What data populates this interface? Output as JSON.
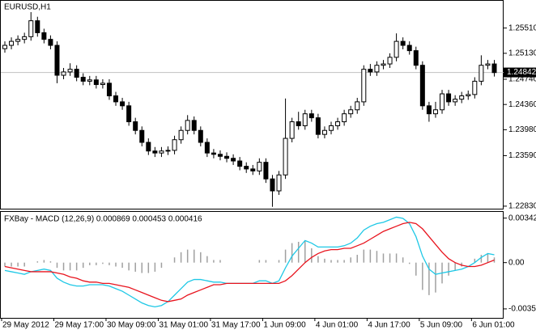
{
  "chart_data": [
    {
      "type": "candlestick",
      "title": "EURUSD,H1",
      "categories": [
        "29 May 2012",
        null,
        null,
        null,
        null,
        null,
        null,
        null,
        "29 May 17:00",
        null,
        null,
        null,
        null,
        null,
        null,
        null,
        "30 May 09:00",
        null,
        null,
        null,
        null,
        null,
        null,
        null,
        "31 May 01:00",
        null,
        null,
        null,
        null,
        null,
        null,
        null,
        "31 May 17:00",
        null,
        null,
        null,
        null,
        null,
        null,
        null,
        "1 Jun 09:00",
        null,
        null,
        null,
        null,
        null,
        null,
        null,
        "4 Jun 01:00",
        null,
        null,
        null,
        null,
        null,
        null,
        null,
        "4 Jun 17:00",
        null,
        null,
        null,
        null,
        null,
        null,
        null,
        "5 Jun 09:00",
        null,
        null,
        null,
        null,
        null,
        null,
        null,
        "6 Jun 01:00",
        null,
        null,
        null
      ],
      "open": [
        1.252,
        1.2525,
        1.2531,
        1.2534,
        1.2538,
        1.2562,
        1.2544,
        1.2534,
        1.2525,
        1.248,
        1.2485,
        1.2489,
        1.2477,
        1.2471,
        1.2473,
        1.2466,
        1.2468,
        1.2449,
        1.244,
        1.2434,
        1.241,
        1.2397,
        1.2379,
        1.2366,
        1.2363,
        1.2366,
        1.2367,
        1.2383,
        1.2397,
        1.2412,
        1.2397,
        1.2379,
        1.2363,
        1.2361,
        1.2358,
        1.2355,
        1.2351,
        1.2343,
        1.2339,
        1.2336,
        1.2349,
        1.2324,
        1.2306,
        1.233,
        1.2385,
        1.241,
        1.2404,
        1.2422,
        1.2416,
        1.2391,
        1.2397,
        1.2404,
        1.241,
        1.2422,
        1.2428,
        1.244,
        1.2489,
        1.2485,
        1.2495,
        1.2497,
        1.2507,
        1.2531,
        1.2525,
        1.2517,
        1.2495,
        1.2434,
        1.2422,
        1.2428,
        1.2452,
        1.244,
        1.2444,
        1.2449,
        1.2451,
        1.2471,
        1.2495,
        1.2497
      ],
      "high": [
        1.2531,
        1.2537,
        1.254,
        1.2544,
        1.2575,
        1.2568,
        1.255,
        1.254,
        1.2531,
        1.2491,
        1.2498,
        1.2495,
        1.2483,
        1.2479,
        1.2479,
        1.2474,
        1.2474,
        1.2455,
        1.2446,
        1.244,
        1.2416,
        1.2403,
        1.2385,
        1.2372,
        1.2372,
        1.2373,
        1.2389,
        1.2403,
        1.242,
        1.2418,
        1.2403,
        1.2385,
        1.2369,
        1.2367,
        1.2364,
        1.2361,
        1.2357,
        1.2349,
        1.2345,
        1.2355,
        1.2355,
        1.233,
        1.2336,
        1.2445,
        1.2416,
        1.2425,
        1.2428,
        1.2428,
        1.2422,
        1.2403,
        1.241,
        1.2416,
        1.2428,
        1.2434,
        1.2446,
        1.2495,
        1.2497,
        1.2501,
        1.2503,
        1.2513,
        1.2543,
        1.2537,
        1.2531,
        1.2523,
        1.2501,
        1.244,
        1.244,
        1.2458,
        1.2458,
        1.245,
        1.2455,
        1.2457,
        1.2477,
        1.251,
        1.2503,
        1.2503
      ],
      "low": [
        1.2514,
        1.2519,
        1.2525,
        1.2528,
        1.2532,
        1.2538,
        1.2528,
        1.2519,
        1.2468,
        1.2474,
        1.2479,
        1.2471,
        1.2465,
        1.2465,
        1.246,
        1.246,
        1.2443,
        1.2434,
        1.2428,
        1.2404,
        1.2391,
        1.2373,
        1.236,
        1.2357,
        1.2357,
        1.236,
        1.2361,
        1.2377,
        1.2391,
        1.2391,
        1.2373,
        1.2357,
        1.2355,
        1.2352,
        1.2349,
        1.2345,
        1.2337,
        1.2333,
        1.233,
        1.233,
        1.2318,
        1.2282,
        1.23,
        1.2324,
        1.2379,
        1.2398,
        1.2398,
        1.241,
        1.2385,
        1.2385,
        1.2391,
        1.2398,
        1.2404,
        1.2416,
        1.2422,
        1.2434,
        1.2479,
        1.2479,
        1.2489,
        1.2491,
        1.2501,
        1.2519,
        1.2511,
        1.2489,
        1.2428,
        1.241,
        1.2416,
        1.2422,
        1.2434,
        1.2434,
        1.2438,
        1.2443,
        1.2445,
        1.2465,
        1.2489,
        1.2478
      ],
      "close": [
        1.2525,
        1.2531,
        1.2534,
        1.2538,
        1.2562,
        1.2544,
        1.2534,
        1.2525,
        1.248,
        1.2485,
        1.2489,
        1.2477,
        1.2471,
        1.2473,
        1.2466,
        1.2468,
        1.2449,
        1.244,
        1.2434,
        1.241,
        1.2397,
        1.2379,
        1.2366,
        1.2363,
        1.2366,
        1.2367,
        1.2383,
        1.2397,
        1.2412,
        1.2397,
        1.2379,
        1.2363,
        1.2361,
        1.2358,
        1.2355,
        1.2351,
        1.2343,
        1.2339,
        1.2336,
        1.2349,
        1.2324,
        1.2306,
        1.233,
        1.2385,
        1.241,
        1.2404,
        1.2422,
        1.2416,
        1.2391,
        1.2397,
        1.2404,
        1.241,
        1.2422,
        1.2428,
        1.244,
        1.2489,
        1.2485,
        1.2495,
        1.2497,
        1.2507,
        1.2531,
        1.2525,
        1.2517,
        1.2495,
        1.2434,
        1.2422,
        1.2428,
        1.2452,
        1.244,
        1.2444,
        1.2449,
        1.2451,
        1.2471,
        1.2495,
        1.2497,
        1.2484
      ],
      "color": "#000000",
      "current_price": 1.24842,
      "ylim": [
        1.2278,
        1.2592
      ],
      "yticks": [
        {
          "value": 1.2551,
          "label": "1.25510"
        },
        {
          "value": 1.2513,
          "label": "1.25130"
        },
        {
          "value": 1.2474,
          "label": "1.24740"
        },
        {
          "value": 1.2436,
          "label": "1.24360"
        },
        {
          "value": 1.2398,
          "label": "1.23980"
        },
        {
          "value": 1.2359,
          "label": "1.23590"
        },
        {
          "value": 1.2283,
          "label": "1.22830"
        }
      ]
    },
    {
      "type": "macd",
      "title": "FXBay - MACD (12,26,9) 0.000869 0.000453 0.000416",
      "histogram": {
        "color": "#a0a0a0",
        "values": [
          -0.0003,
          -0.0003,
          -0.0003,
          -0.0003,
          0,
          0.0001,
          0.0002,
          0.0001,
          -0.0004,
          -0.0006,
          -0.0006,
          -0.0006,
          -0.0004,
          -0.0002,
          -0.0002,
          -0.0001,
          -0.0002,
          -0.0003,
          -0.0004,
          -0.0006,
          -0.0007,
          -0.0008,
          -0.0008,
          -0.0007,
          -0.0004,
          0,
          0.0004,
          0.0008,
          0.001,
          0.001,
          0.0008,
          0.0005,
          0.0002,
          0.0002,
          0,
          0,
          0,
          0,
          0,
          0.0002,
          0.0002,
          0,
          0.0002,
          0.001,
          0.0015,
          0.0016,
          0.0017,
          0.0011,
          0.0005,
          0.0003,
          0.0002,
          0.0002,
          0.0002,
          0.0004,
          0.0006,
          0.001,
          0.001,
          0.0009,
          0.0007,
          0.0007,
          0.0007,
          0.0004,
          -0.0001,
          -0.001,
          -0.0021,
          -0.0025,
          -0.0023,
          -0.0016,
          -0.001,
          -0.0006,
          -0.0003,
          0,
          0.0003,
          0.0006,
          0.0007,
          0.0004
        ]
      },
      "lines": [
        {
          "color": "#1ec8e6",
          "values": [
            -0.0006,
            -0.0007,
            -0.0008,
            -0.0009,
            -0.0007,
            -0.0006,
            -0.0005,
            -0.0006,
            -0.0012,
            -0.0015,
            -0.0017,
            -0.0018,
            -0.0018,
            -0.0017,
            -0.0017,
            -0.0017,
            -0.0018,
            -0.002,
            -0.0022,
            -0.0025,
            -0.0028,
            -0.0031,
            -0.0033,
            -0.0034,
            -0.0033,
            -0.003,
            -0.0025,
            -0.002,
            -0.0015,
            -0.0013,
            -0.0013,
            -0.0014,
            -0.0015,
            -0.0015,
            -0.0016,
            -0.0016,
            -0.0016,
            -0.0016,
            -0.0016,
            -0.0014,
            -0.0014,
            -0.0016,
            -0.0014,
            -0.0004,
            0.0005,
            0.0011,
            0.0017,
            0.0015,
            0.0012,
            0.0012,
            0.0012,
            0.0012,
            0.0013,
            0.0015,
            0.0019,
            0.0025,
            0.0028,
            0.003,
            0.0031,
            0.0033,
            0.0035,
            0.0034,
            0.003,
            0.002,
            0.0005,
            -0.0005,
            -0.0009,
            -0.0008,
            -0.0007,
            -0.0006,
            -0.0005,
            -0.0003,
            0,
            0.0004,
            0.0007,
            0.0006
          ]
        },
        {
          "color": "#e8141e",
          "values": [
            -0.0003,
            -0.0004,
            -0.0005,
            -0.0006,
            -0.0007,
            -0.0007,
            -0.0007,
            -0.0007,
            -0.0008,
            -0.0009,
            -0.0011,
            -0.0012,
            -0.0014,
            -0.0015,
            -0.0015,
            -0.0016,
            -0.0016,
            -0.0017,
            -0.0018,
            -0.0019,
            -0.0021,
            -0.0023,
            -0.0025,
            -0.0027,
            -0.0029,
            -0.003,
            -0.0029,
            -0.0028,
            -0.0025,
            -0.0023,
            -0.0021,
            -0.0019,
            -0.0017,
            -0.0017,
            -0.0016,
            -0.0016,
            -0.0016,
            -0.0016,
            -0.0016,
            -0.0016,
            -0.0016,
            -0.0016,
            -0.0016,
            -0.0014,
            -0.001,
            -0.0005,
            0,
            0.0004,
            0.0007,
            0.0009,
            0.001,
            0.001,
            0.0011,
            0.0011,
            0.0013,
            0.0015,
            0.0018,
            0.0021,
            0.0024,
            0.0026,
            0.0028,
            0.003,
            0.0031,
            0.003,
            0.0026,
            0.002,
            0.0014,
            0.0008,
            0.0003,
            0,
            -0.0002,
            -0.0003,
            -0.0003,
            -0.0002,
            0,
            0.0002
          ]
        }
      ],
      "ylim": [
        -0.00425,
        0.0039
      ],
      "yticks": [
        0.003424,
        {
          "value": 0,
          "label": "0.00"
        },
        -0.00356
      ]
    }
  ]
}
